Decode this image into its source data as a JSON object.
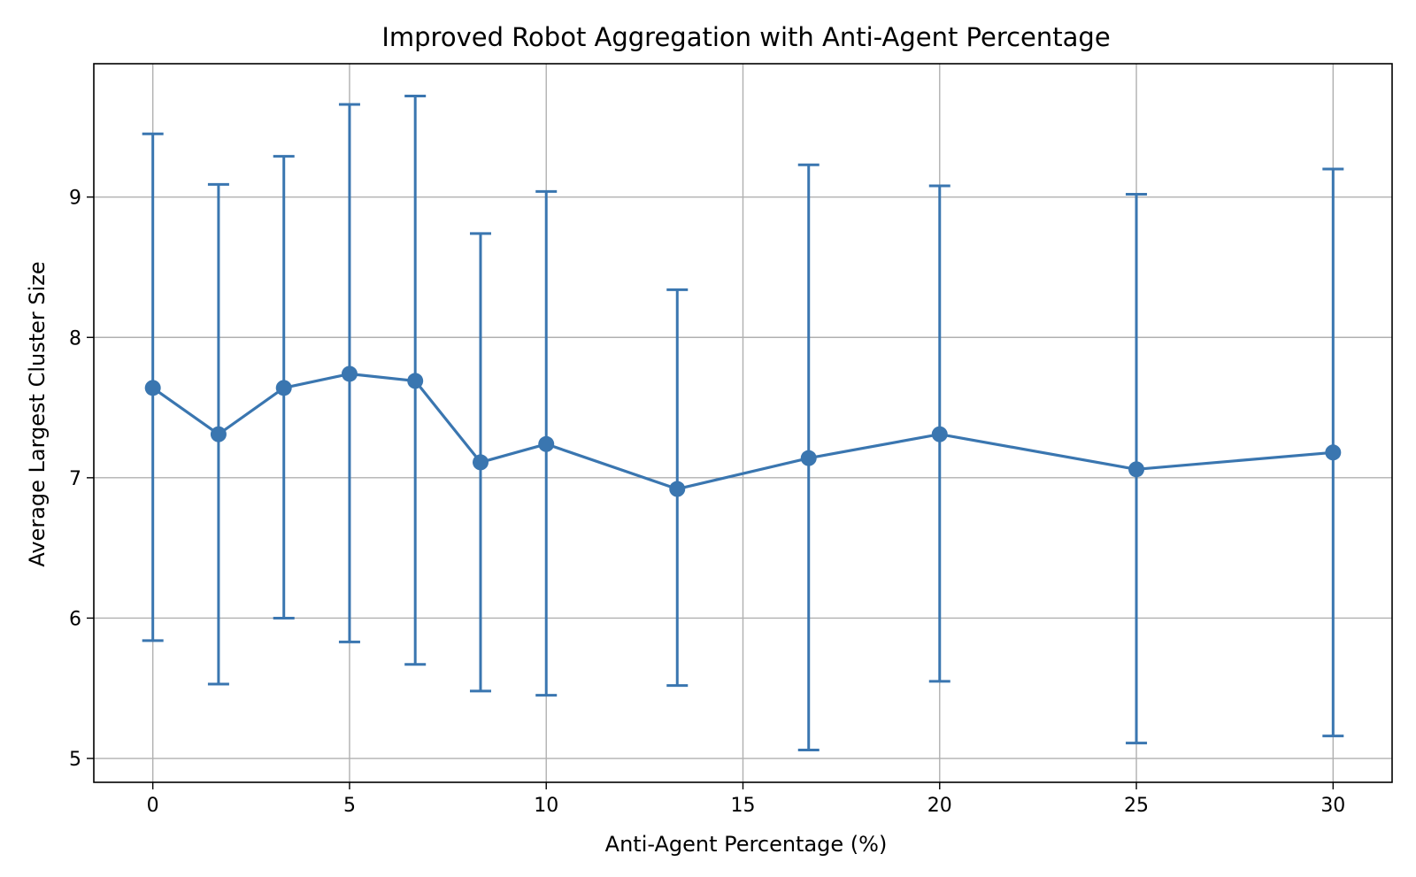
{
  "chart_data": {
    "type": "line",
    "title": "Improved Robot Aggregation with Anti-Agent Percentage",
    "xlabel": "Anti-Agent Percentage (%)",
    "ylabel": "Average Largest Cluster Size",
    "xlim": [
      -1.5,
      31.5
    ],
    "ylim": [
      4.83,
      9.95
    ],
    "xticks": [
      0,
      5,
      10,
      15,
      20,
      25,
      30
    ],
    "yticks": [
      5,
      6,
      7,
      8,
      9
    ],
    "grid": true,
    "series": [
      {
        "color": "#3a76b0",
        "marker": "circle",
        "x": [
          0,
          1.67,
          3.33,
          5,
          6.67,
          8.33,
          10,
          13.33,
          16.67,
          20,
          25,
          30
        ],
        "y": [
          7.64,
          7.31,
          7.64,
          7.74,
          7.69,
          7.11,
          7.24,
          6.92,
          7.14,
          7.31,
          7.06,
          7.18
        ],
        "yerr_low": [
          5.84,
          5.53,
          6.0,
          5.83,
          5.67,
          5.48,
          5.45,
          5.52,
          5.06,
          5.55,
          5.11,
          5.16
        ],
        "yerr_high": [
          9.45,
          9.09,
          9.29,
          9.66,
          9.72,
          8.74,
          9.04,
          8.34,
          9.23,
          9.08,
          9.02,
          9.2
        ]
      }
    ]
  }
}
